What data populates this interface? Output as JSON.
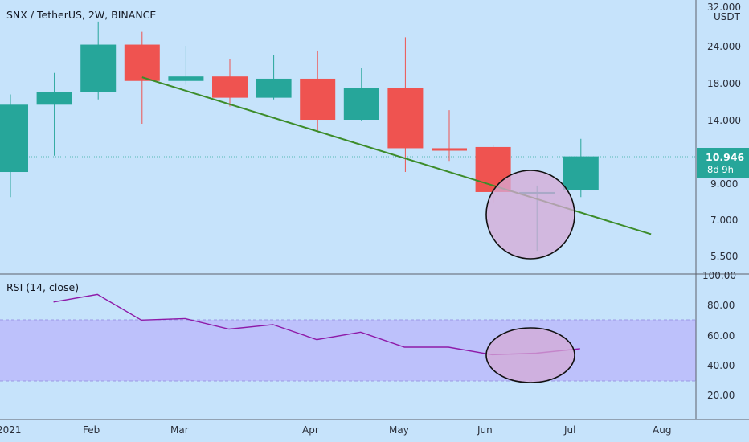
{
  "header": {
    "title": "SNX / TetherUS, 2W, BINANCE",
    "currency": "USDT"
  },
  "price_label": {
    "value": "10.946",
    "countdown": "8d 9h"
  },
  "rsi_pane": {
    "title": "RSI (14, close)"
  },
  "colors": {
    "background": "#c6e3fb",
    "up": "#26a69a",
    "down": "#ef5350",
    "trendline": "#3c8c2a",
    "rsi_line": "#8e1aa8",
    "rsi_band": "#b9b6fb",
    "circle_fill": "#d6a9d6",
    "axis_label_bg": "#26a69a"
  },
  "chart_data": [
    {
      "type": "candlestick",
      "title": "SNX / TetherUS, 2W, BINANCE",
      "x_ticks": [
        "2021",
        "Feb",
        "Mar",
        "Apr",
        "May",
        "Jun",
        "Jul",
        "Aug"
      ],
      "y_ticks": [
        "32.000",
        "24.000",
        "18.000",
        "14.000",
        "9.000",
        "7.000",
        "5.500"
      ],
      "y_scale": "log",
      "candles": [
        {
          "open": 9.8,
          "high": 17.0,
          "low": 8.2,
          "close": 15.8
        },
        {
          "open": 15.8,
          "high": 19.8,
          "low": 11.0,
          "close": 17.3
        },
        {
          "open": 17.3,
          "high": 28.5,
          "low": 16.4,
          "close": 24.2
        },
        {
          "open": 24.2,
          "high": 26.5,
          "low": 13.8,
          "close": 18.7
        },
        {
          "open": 18.7,
          "high": 24.0,
          "low": 18.2,
          "close": 19.3
        },
        {
          "open": 19.3,
          "high": 21.8,
          "low": 15.6,
          "close": 16.6
        },
        {
          "open": 16.6,
          "high": 22.5,
          "low": 16.4,
          "close": 19.0
        },
        {
          "open": 19.0,
          "high": 23.2,
          "low": 13.0,
          "close": 14.2
        },
        {
          "open": 14.2,
          "high": 20.5,
          "low": 14.1,
          "close": 17.8
        },
        {
          "open": 17.8,
          "high": 25.5,
          "low": 9.8,
          "close": 11.6
        },
        {
          "open": 11.6,
          "high": 15.2,
          "low": 10.6,
          "close": 11.4
        },
        {
          "open": 11.7,
          "high": 11.9,
          "low": 7.9,
          "close": 8.5
        },
        {
          "open": 8.4,
          "high": 8.9,
          "low": 5.6,
          "close": 8.5
        },
        {
          "open": 8.6,
          "high": 12.4,
          "low": 8.2,
          "close": 10.946
        }
      ],
      "trendline": [
        {
          "x": 3,
          "y": 19.2
        },
        {
          "x": 14.6,
          "y": 6.3
        }
      ],
      "annotation": "circle around candle 12"
    },
    {
      "type": "line",
      "title": "RSI (14, close)",
      "y_ticks": [
        "100.00",
        "80.00",
        "60.00",
        "40.00",
        "20.00"
      ],
      "band": [
        30,
        70
      ],
      "values": [
        82,
        87,
        70,
        71,
        64,
        67,
        57,
        62,
        52,
        52,
        47,
        48,
        51
      ],
      "annotation": "ellipse around last three values"
    }
  ]
}
